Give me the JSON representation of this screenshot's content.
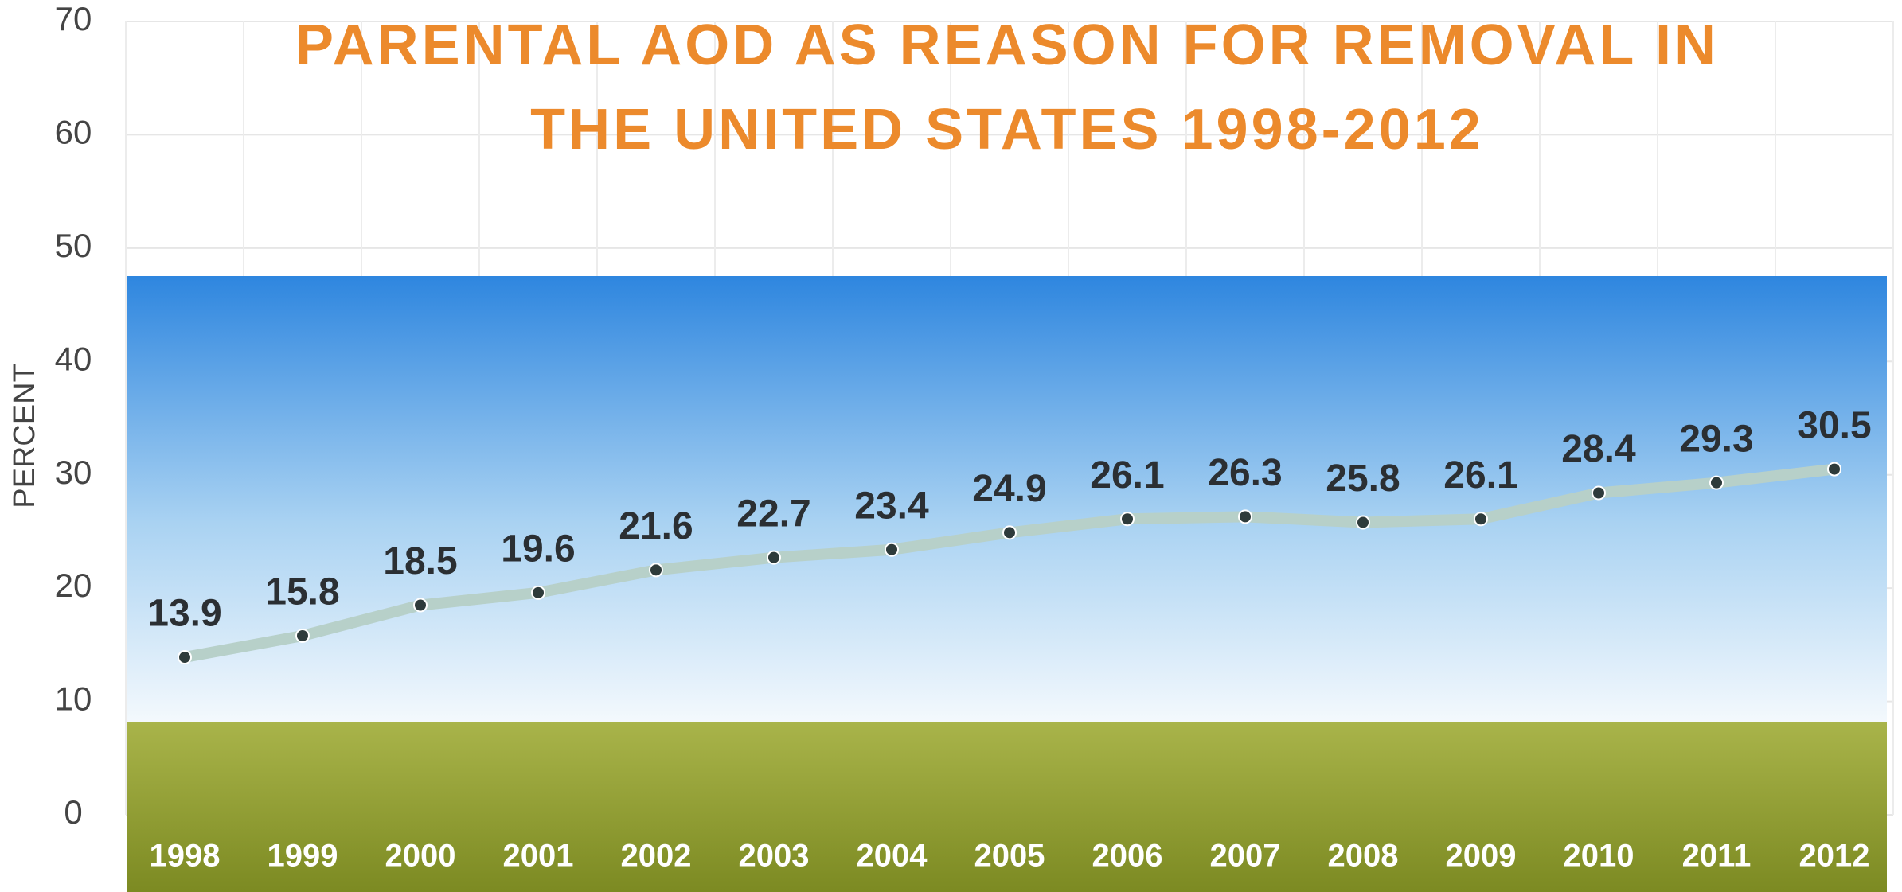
{
  "chart_data": {
    "type": "line",
    "title": "PARENTAL AOD AS REASON FOR REMOVAL IN THE UNITED STATES 1998-2012",
    "y_label": "PERCENT",
    "categories": [
      "1998",
      "1999",
      "2000",
      "2001",
      "2002",
      "2003",
      "2004",
      "2005",
      "2006",
      "2007",
      "2008",
      "2009",
      "2010",
      "2011",
      "2012"
    ],
    "values": [
      13.9,
      15.8,
      18.5,
      19.6,
      21.6,
      22.7,
      23.4,
      24.9,
      26.1,
      26.3,
      25.8,
      26.1,
      28.4,
      29.3,
      30.5
    ],
    "color": "#b7d0c9",
    "marker_color": "#2e3b3b",
    "ylim": [
      0,
      70
    ],
    "yticks": [
      0,
      10,
      20,
      30,
      40,
      50,
      60,
      70
    ],
    "grid": true
  }
}
